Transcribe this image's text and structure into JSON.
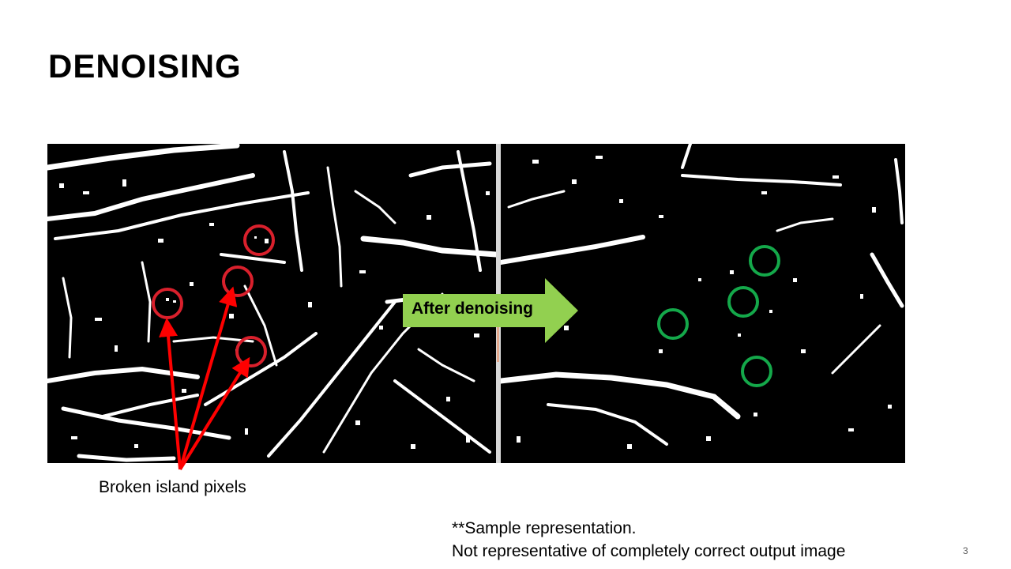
{
  "slide": {
    "title": "DENOISING",
    "arrow_label": "After denoising",
    "caption": "Broken island pixels",
    "note_line1": "**Sample representation.",
    "note_line2": "Not representative of completely correct output image",
    "page_number": "3"
  },
  "colors": {
    "arrow_fill": "#92d050",
    "red_marker": "#ff0000",
    "red_circle": "#d9202c",
    "green_circle": "#14a84a",
    "image_background": "#000000",
    "image_foreground": "#ffffff"
  },
  "images": {
    "before": "binary-image-before-denoising",
    "after": "binary-image-after-denoising"
  }
}
